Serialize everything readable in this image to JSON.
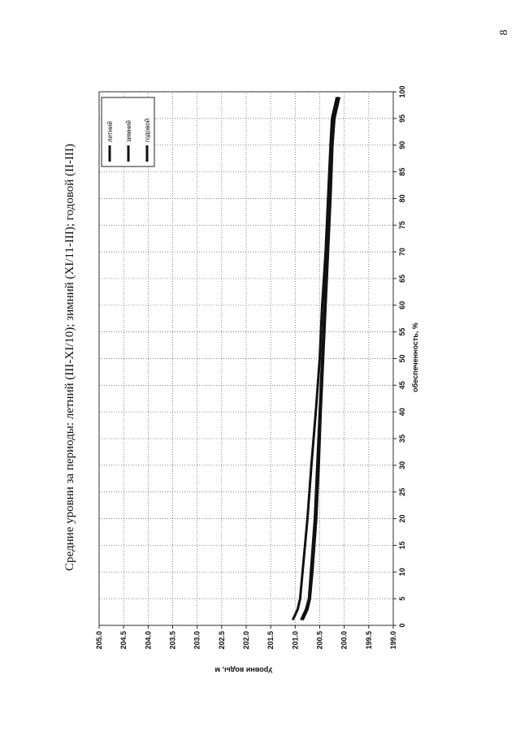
{
  "page_number": "8",
  "chart_data": {
    "type": "line",
    "title": "Средние уровни за периоды: летний (III-XI/10); зимний (XI/11-III); годовой (II-III)",
    "x_label": "обеспеченность, %",
    "y_label": "Уровни воды, м",
    "x": [
      1,
      3,
      5,
      10,
      20,
      30,
      40,
      50,
      60,
      70,
      80,
      90,
      95,
      99
    ],
    "series": [
      {
        "name": "летний",
        "color": "#111111",
        "values": [
          201.05,
          200.95,
          200.9,
          200.85,
          200.75,
          200.67,
          200.58,
          200.5,
          200.45,
          200.38,
          200.33,
          200.28,
          200.25,
          200.15
        ]
      },
      {
        "name": "зимний",
        "color": "#111111",
        "values": [
          200.88,
          200.78,
          200.72,
          200.68,
          200.6,
          200.55,
          200.5,
          200.45,
          200.4,
          200.35,
          200.3,
          200.25,
          200.22,
          200.12
        ]
      },
      {
        "name": "годовой",
        "color": "#111111",
        "values": [
          200.85,
          200.75,
          200.7,
          200.65,
          200.57,
          200.52,
          200.48,
          200.43,
          200.38,
          200.33,
          200.28,
          200.24,
          200.2,
          200.1
        ]
      }
    ],
    "xlim": [
      0,
      100
    ],
    "xticks": [
      0,
      5,
      10,
      15,
      20,
      25,
      30,
      35,
      40,
      45,
      50,
      55,
      60,
      65,
      70,
      75,
      80,
      85,
      90,
      95,
      100
    ],
    "ylim": [
      199,
      205
    ],
    "yticks": [
      {
        "value": 199,
        "label": "199.0"
      },
      {
        "value": 199.5,
        "label": "199.5"
      },
      {
        "value": 200,
        "label": "200.0"
      },
      {
        "value": 200.5,
        "label": "200.5"
      },
      {
        "value": 201,
        "label": "201.0"
      },
      {
        "value": 201.5,
        "label": "201.5"
      },
      {
        "value": 202,
        "label": "202.0"
      },
      {
        "value": 202.5,
        "label": "202.5"
      },
      {
        "value": 203,
        "label": "203.0"
      },
      {
        "value": 203.5,
        "label": "203.5"
      },
      {
        "value": 204,
        "label": "204.0"
      },
      {
        "value": 204.5,
        "label": "204.5"
      },
      {
        "value": 205,
        "label": "205.0"
      }
    ],
    "grid": true,
    "legend": "upper right"
  }
}
